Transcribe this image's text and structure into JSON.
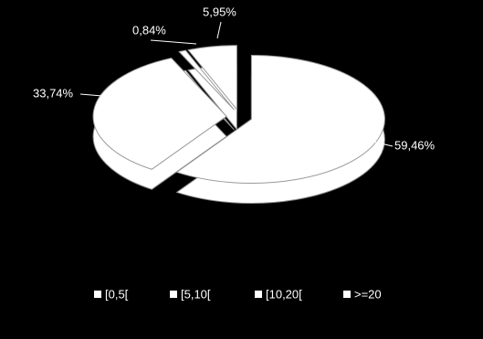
{
  "chart_data": {
    "type": "pie",
    "categories": [
      "[0,5[",
      "[5,10[",
      "[10,20[",
      ">=20"
    ],
    "values": [
      59.46,
      33.74,
      0.84,
      5.95
    ],
    "value_labels": [
      "59,46%",
      "33,74%",
      "0,84%",
      "5,95%"
    ],
    "color": "#ffffff",
    "legend": "bottom"
  }
}
